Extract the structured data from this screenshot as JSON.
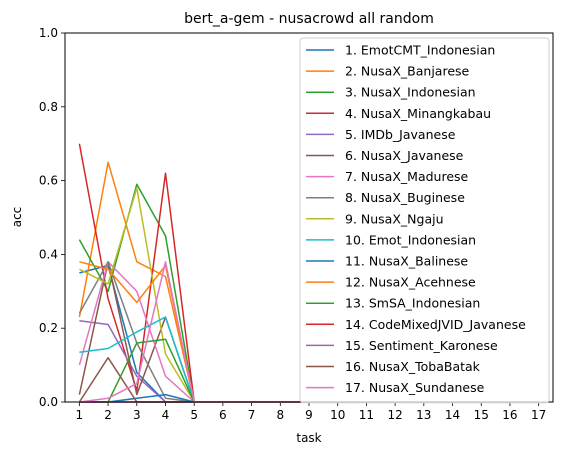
{
  "chart_data": {
    "type": "line",
    "title": "bert_a-gem - nusacrowd all random",
    "xlabel": "task",
    "ylabel": "acc",
    "xlim": [
      0.5,
      17.5
    ],
    "ylim": [
      0,
      1.0
    ],
    "x_ticks": [
      "1",
      "2",
      "3",
      "4",
      "5",
      "6",
      "7",
      "8",
      "9",
      "10",
      "11",
      "12",
      "13",
      "14",
      "15",
      "16",
      "17"
    ],
    "y_ticks": [
      "0.0",
      "0.2",
      "0.4",
      "0.6",
      "0.8",
      "1.0"
    ],
    "x": [
      1,
      2,
      3,
      4,
      5,
      6,
      7,
      8,
      9,
      10,
      11,
      12,
      13,
      14,
      15,
      16,
      17
    ],
    "legend_position": "upper right",
    "series": [
      {
        "name": "1. EmotCMT_Indonesian",
        "color": "#1f77b4",
        "values": [
          0.35,
          0.37,
          0.08,
          0.0,
          0,
          0,
          0,
          0,
          0,
          0,
          0,
          0,
          0,
          0,
          0,
          0,
          0
        ]
      },
      {
        "name": "2. NusaX_Banjarese",
        "color": "#ff7f0e",
        "values": [
          0.23,
          0.65,
          0.38,
          0.34,
          0,
          0,
          0,
          0,
          0,
          0,
          0,
          0,
          0,
          0,
          0,
          0,
          0
        ]
      },
      {
        "name": "3. NusaX_Indonesian",
        "color": "#2ca02c",
        "values": [
          0.44,
          0.3,
          0.59,
          0.45,
          0,
          0,
          0,
          0,
          0,
          0,
          0,
          0,
          0,
          0,
          0,
          0,
          0
        ]
      },
      {
        "name": "4. NusaX_Minangkabau",
        "color": "#d62728",
        "values": [
          0.7,
          0.28,
          0.03,
          0.62,
          0,
          0,
          0,
          0,
          0,
          0,
          0,
          0,
          0,
          0,
          0,
          0,
          0
        ]
      },
      {
        "name": "5. IMDb_Javanese",
        "color": "#9467bd",
        "values": [
          0.22,
          0.21,
          0.07,
          0.0,
          0,
          0,
          0,
          0,
          0,
          0,
          0,
          0,
          0,
          0,
          0,
          0,
          0
        ]
      },
      {
        "name": "6. NusaX_Javanese",
        "color": "#8c564b",
        "values": [
          0.02,
          0.38,
          0.02,
          0.23,
          0,
          0,
          0,
          0,
          0,
          0,
          0,
          0,
          0,
          0,
          0,
          0,
          0
        ]
      },
      {
        "name": "7. NusaX_Madurese",
        "color": "#e377c2",
        "values": [
          0.1,
          0.38,
          0.3,
          0.07,
          0,
          0,
          0,
          0,
          0,
          0,
          0,
          0,
          0,
          0,
          0,
          0,
          0
        ]
      },
      {
        "name": "8. NusaX_Buginese",
        "color": "#7f7f7f",
        "values": [
          0.24,
          0.38,
          0.16,
          0.01,
          0,
          0,
          0,
          0,
          0,
          0,
          0,
          0,
          0,
          0,
          0,
          0,
          0
        ]
      },
      {
        "name": "9. NusaX_Ngaju",
        "color": "#bcbd22",
        "values": [
          0.36,
          0.32,
          0.58,
          0.13,
          0,
          0,
          0,
          0,
          0,
          0,
          0,
          0,
          0,
          0,
          0,
          0,
          0
        ]
      },
      {
        "name": "10. Emot_Indonesian",
        "color": "#17becf",
        "values": [
          0.135,
          0.145,
          0.19,
          0.23,
          0,
          0,
          0,
          0,
          0,
          0,
          0,
          0,
          0,
          0,
          0,
          0,
          0
        ]
      },
      {
        "name": "11. NusaX_Balinese",
        "color": "#1f77b4",
        "values": [
          0.0,
          0.0,
          0.01,
          0.02,
          0,
          0,
          0,
          0,
          0,
          0,
          0,
          0,
          0,
          0,
          0,
          0,
          0
        ]
      },
      {
        "name": "12. NusaX_Acehnese",
        "color": "#ff7f0e",
        "values": [
          0.38,
          0.36,
          0.27,
          0.37,
          0,
          0,
          0,
          0,
          0,
          0,
          0,
          0,
          0,
          0,
          0,
          0,
          0
        ]
      },
      {
        "name": "13. SmSA_Indonesian",
        "color": "#2ca02c",
        "values": [
          0.0,
          0.0,
          0.16,
          0.17,
          0,
          0,
          0,
          0,
          0,
          0,
          0,
          0,
          0,
          0,
          0,
          0,
          0
        ]
      },
      {
        "name": "14. CodeMixedJVID_Javanese",
        "color": "#d62728",
        "values": [
          0.0,
          0.0,
          0.0,
          0.0,
          0,
          0,
          0,
          0,
          0,
          0,
          0,
          0,
          0,
          0,
          0,
          0,
          0
        ]
      },
      {
        "name": "15. Sentiment_Karonese",
        "color": "#9467bd",
        "values": [
          0.0,
          0.0,
          0.0,
          0.0,
          0,
          0,
          0,
          0,
          0,
          0,
          0,
          0,
          0,
          0,
          0,
          0,
          0
        ]
      },
      {
        "name": "16. NusaX_TobaBatak",
        "color": "#8c564b",
        "values": [
          0.0,
          0.12,
          0.0,
          0.0,
          0,
          0,
          0,
          0,
          0,
          0,
          0,
          0,
          0,
          0,
          0,
          0,
          0
        ]
      },
      {
        "name": "17. NusaX_Sundanese",
        "color": "#e377c2",
        "values": [
          0.0,
          0.01,
          0.05,
          0.38,
          0,
          0,
          0,
          0,
          0,
          0,
          0,
          0,
          0,
          0,
          0,
          0,
          0
        ]
      }
    ]
  }
}
